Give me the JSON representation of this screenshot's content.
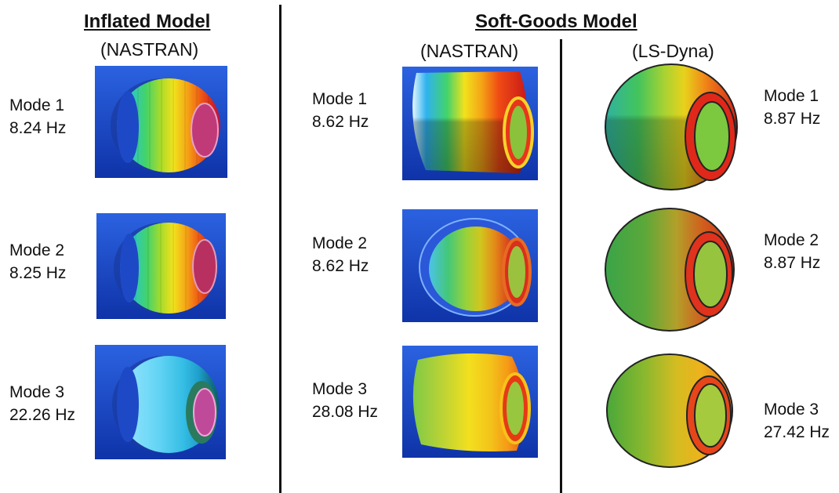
{
  "headers": {
    "inflated_title": "Inflated Model",
    "inflated_solver": "(NASTRAN)",
    "softgoods_title": "Soft-Goods Model",
    "softgoods_nastran": "(NASTRAN)",
    "softgoods_lsdyna": "(LS-Dyna)"
  },
  "inflated": [
    {
      "mode": "Mode 1",
      "freq": "8.24 Hz"
    },
    {
      "mode": "Mode 2",
      "freq": "8.25 Hz"
    },
    {
      "mode": "Mode 3",
      "freq": "22.26 Hz"
    }
  ],
  "softgoods_nastran": [
    {
      "mode": "Mode 1",
      "freq": "8.62 Hz"
    },
    {
      "mode": "Mode 2",
      "freq": "8.62 Hz"
    },
    {
      "mode": "Mode 3",
      "freq": "28.08 Hz"
    }
  ],
  "softgoods_lsdyna": [
    {
      "mode": "Mode 1",
      "freq": "8.87 Hz"
    },
    {
      "mode": "Mode 2",
      "freq": "8.87 Hz"
    },
    {
      "mode": "Mode 3",
      "freq": "27.42 Hz"
    }
  ],
  "colors": {
    "panel_bg": "#1c4fd0",
    "rainbow": [
      "#3da8e8",
      "#2fc8c0",
      "#43d36a",
      "#a6db2c",
      "#f1e21c",
      "#f5a416",
      "#ef5f14",
      "#d6261c",
      "#b8124a"
    ],
    "cyan_mode": [
      "#9ee8ff",
      "#63d4f4",
      "#34bde4",
      "#1f9fcc",
      "#137a96",
      "#0c5d64"
    ]
  }
}
